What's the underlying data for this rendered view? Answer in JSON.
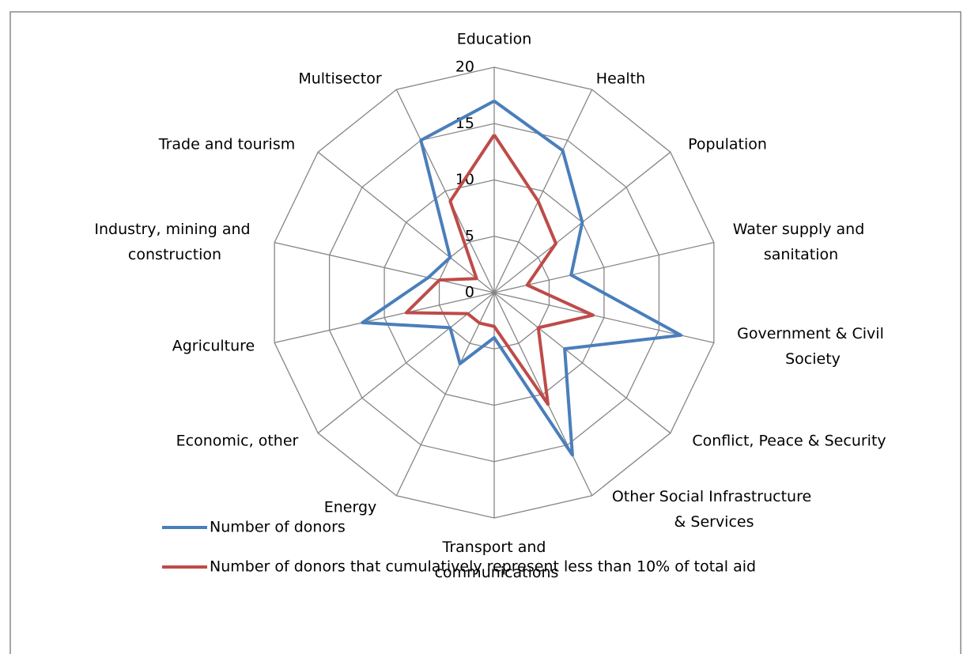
{
  "chart_data": {
    "type": "radar",
    "categories": [
      "Education",
      "Health",
      "Population",
      "Water supply and sanitation",
      "Government & Civil Society",
      "Conflict, Peace & Security",
      "Other Social Infrastructure & Services",
      "Transport and communications",
      "Energy",
      "Economic, other",
      "Agriculture",
      "Industry, mining and construction",
      "Trade and tourism",
      "Multisector"
    ],
    "series": [
      {
        "name": "Number of donors",
        "color": "#4a7ebb",
        "values": [
          17,
          14,
          10,
          7,
          17,
          8,
          16,
          4,
          7,
          5,
          12,
          6,
          5,
          15
        ]
      },
      {
        "name": "Number of donors that cumulatively represent less than 10% of total aid",
        "color": "#be4b48",
        "values": [
          14,
          9,
          7,
          3,
          9,
          5,
          11,
          3,
          3,
          3,
          8,
          5,
          2,
          9
        ]
      }
    ],
    "ylim": [
      0,
      20
    ],
    "yticks": [
      0,
      5,
      10,
      15,
      20
    ],
    "grid": true
  }
}
